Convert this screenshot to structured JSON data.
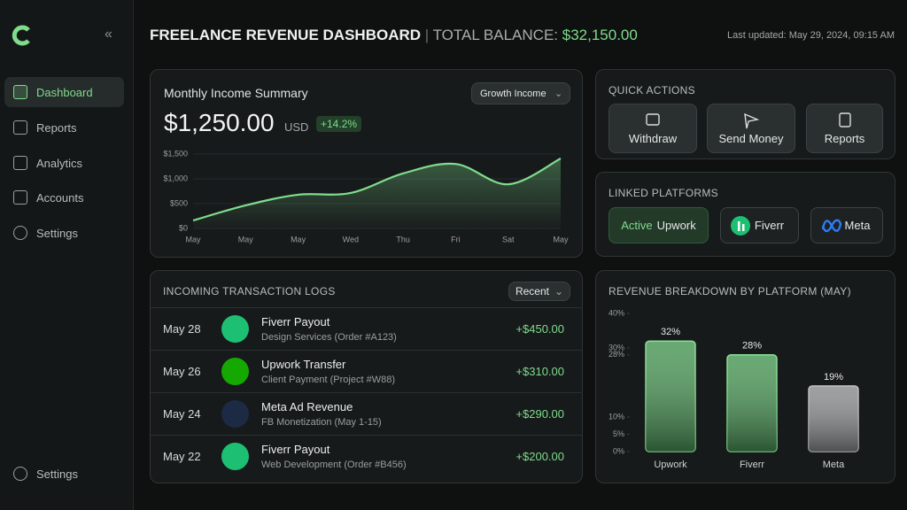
{
  "sidebar": {
    "nav": [
      "Dashboard",
      "Reports",
      "Analytics",
      "Accounts",
      "Settings"
    ],
    "footer": "Settings"
  },
  "header": {
    "title": "FREELANCE REVENUE DASHBOARD",
    "balance_label": "TOTAL BALANCE:",
    "balance": "$32,150.00",
    "updated": "Last updated: May 29, 2024, 09:15 AM"
  },
  "income": {
    "dropdown": "Growth Income",
    "amount": "$1,250.00",
    "currency": "USD",
    "change": "+14.2%"
  },
  "quick_actions": {
    "title": "QUICK ACTIONS",
    "actions": [
      "Withdraw",
      "Send Money",
      "Reports"
    ]
  },
  "platforms": {
    "title": "LINKED PLATFORMS",
    "status": "Active",
    "items": [
      "Upwork",
      "Fiverr",
      "Meta"
    ]
  },
  "transactions": {
    "title": "INCOMING TRANSACTION LOGS",
    "filter": "Recent",
    "rows": [
      {
        "date": "May 28",
        "title": "Fiverr Payout",
        "subtitle": "Design Services (Order #A123)",
        "amount": "+$450.00"
      },
      {
        "date": "May 26",
        "title": "Upwork Transfer",
        "subtitle": "Client Payment (Project #W88)",
        "amount": "+$310.00"
      },
      {
        "date": "May 24",
        "title": "Meta Ad Revenue",
        "subtitle": "FB Monetization (May 1-15)",
        "amount": "+$290.00"
      },
      {
        "date": "May 22",
        "title": "Fiverr Payout",
        "subtitle": "Web Development (Order #B456)",
        "amount": "+$200.00"
      }
    ]
  },
  "chart_data": [
    {
      "type": "line",
      "title": "Monthly Income Summary",
      "categories": [
        "May",
        "May",
        "May",
        "Wed",
        "Thu",
        "Fri",
        "Sat",
        "May"
      ],
      "values": [
        160,
        465,
        680,
        715,
        1110,
        1300,
        890,
        1410
      ],
      "color": "#7fdc8c",
      "ylim": [
        0,
        1500
      ],
      "yticks": [
        {
          "value": 0,
          "label": "$0"
        },
        {
          "value": 500,
          "label": "$500"
        },
        {
          "value": 1000,
          "label": "$1,000"
        },
        {
          "value": 1500,
          "label": "$1,500"
        }
      ],
      "grid": true
    },
    {
      "type": "bar",
      "title": "REVENUE BREAKDOWN BY PLATFORM (MAY)",
      "categories": [
        "Upwork",
        "Fiverr",
        "Meta"
      ],
      "values": [
        32,
        28,
        19
      ],
      "value_labels": [
        "32%",
        "28%",
        "19%"
      ],
      "colors": [
        "#4e9a5a",
        "#4e9a5a",
        "#8d8f91"
      ],
      "ylim": [
        0,
        40
      ],
      "yticks": [
        {
          "value": 0,
          "label": "0%"
        },
        {
          "value": 5,
          "label": "5%"
        },
        {
          "value": 10,
          "label": "10%"
        },
        {
          "value": 28,
          "label": "28%"
        },
        {
          "value": 30,
          "label": "30%"
        },
        {
          "value": 40,
          "label": "40%"
        }
      ],
      "grid": false
    }
  ]
}
